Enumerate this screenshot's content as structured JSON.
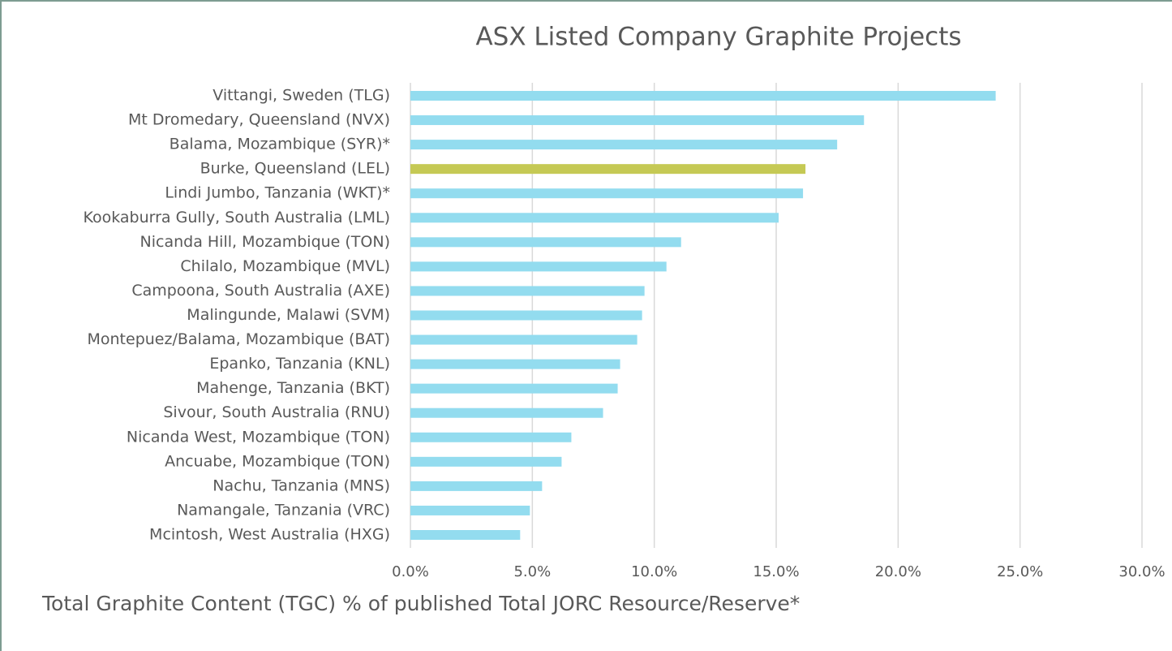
{
  "chart_data": {
    "type": "barh",
    "title": "ASX Listed Company Graphite Projects",
    "x_label": "Total Graphite Content (TGC) % of published Total JORC Resource/Reserve*",
    "categories": [
      "Vittangi, Sweden (TLG)",
      "Mt Dromedary, Queensland (NVX)",
      "Balama, Mozambique (SYR)*",
      "Burke, Queensland (LEL)",
      "Lindi Jumbo, Tanzania (WKT)*",
      "Kookaburra Gully, South Australia (LML)",
      "Nicanda Hill, Mozambique (TON)",
      "Chilalo, Mozambique (MVL)",
      "Campoona, South Australia (AXE)",
      "Malingunde, Malawi (SVM)",
      "Montepuez/Balama, Mozambique (BAT)",
      "Epanko, Tanzania (KNL)",
      "Mahenge, Tanzania (BKT)",
      "Sivour, South Australia (RNU)",
      "Nicanda West, Mozambique (TON)",
      "Ancuabe, Mozambique (TON)",
      "Nachu, Tanzania (MNS)",
      "Namangale, Tanzania (VRC)",
      "Mcintosh, West Australia (HXG)"
    ],
    "values": [
      24.0,
      18.6,
      17.5,
      16.2,
      16.1,
      15.1,
      11.1,
      10.5,
      9.6,
      9.5,
      9.3,
      8.6,
      8.5,
      7.9,
      6.6,
      6.2,
      5.4,
      4.9,
      4.5
    ],
    "colors": [
      "#93dcef",
      "#93dcef",
      "#93dcef",
      "#c5c954",
      "#93dcef",
      "#93dcef",
      "#93dcef",
      "#93dcef",
      "#93dcef",
      "#93dcef",
      "#93dcef",
      "#93dcef",
      "#93dcef",
      "#93dcef",
      "#93dcef",
      "#93dcef",
      "#93dcef",
      "#93dcef",
      "#93dcef"
    ],
    "xlim": [
      0,
      30
    ],
    "xticks": [
      {
        "value": 0,
        "label": "0.0%"
      },
      {
        "value": 5,
        "label": "5.0%"
      },
      {
        "value": 10,
        "label": "10.0%"
      },
      {
        "value": 15,
        "label": "15.0%"
      },
      {
        "value": 20,
        "label": "20.0%"
      },
      {
        "value": 25,
        "label": "25.0%"
      },
      {
        "value": 30,
        "label": "30.0%"
      }
    ],
    "grid": true
  }
}
